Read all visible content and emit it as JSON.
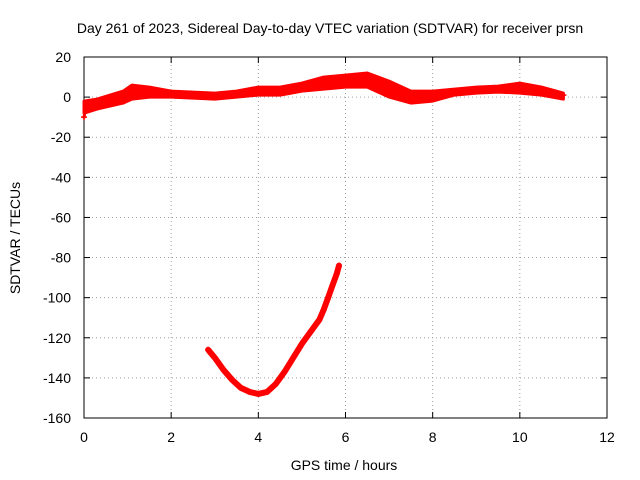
{
  "chart_data": {
    "type": "scatter",
    "title": "Day 261 of 2023, Sidereal Day-to-day VTEC variation (SDTVAR) for receiver prsn",
    "xlabel": "GPS time / hours",
    "ylabel": "SDTVAR / TECUs",
    "xlim": [
      0,
      12
    ],
    "ylim": [
      -160,
      20
    ],
    "xticks": [
      0,
      2,
      4,
      6,
      8,
      10,
      12
    ],
    "yticks": [
      20,
      0,
      -20,
      -40,
      -60,
      -80,
      -100,
      -120,
      -140,
      -160
    ],
    "grid": true,
    "marker": "+",
    "color": "#ff0000",
    "series": [
      {
        "name": "main band",
        "points": [
          [
            0.0,
            -10
          ],
          [
            0.05,
            -4
          ],
          [
            0.2,
            -3
          ],
          [
            0.5,
            -1
          ],
          [
            0.9,
            1
          ],
          [
            1.1,
            3
          ],
          [
            1.5,
            3
          ],
          [
            2.0,
            2
          ],
          [
            2.5,
            1
          ],
          [
            3.0,
            1
          ],
          [
            3.5,
            1.5
          ],
          [
            4.0,
            3.5
          ],
          [
            4.5,
            3.5
          ],
          [
            5.0,
            5
          ],
          [
            5.5,
            8
          ],
          [
            6.0,
            9
          ],
          [
            6.3,
            8
          ],
          [
            6.6,
            9
          ],
          [
            7.0,
            5
          ],
          [
            7.5,
            0
          ],
          [
            8.0,
            0
          ],
          [
            8.5,
            2.5
          ],
          [
            9.0,
            3.5
          ],
          [
            9.5,
            4
          ],
          [
            10.0,
            5
          ],
          [
            10.5,
            3
          ],
          [
            11.0,
            1
          ]
        ],
        "upper": [
          [
            0.0,
            -2
          ],
          [
            0.3,
            -1
          ],
          [
            0.9,
            3
          ],
          [
            1.1,
            6
          ],
          [
            1.5,
            5
          ],
          [
            2.0,
            3
          ],
          [
            3.0,
            2
          ],
          [
            3.5,
            3
          ],
          [
            4.0,
            5
          ],
          [
            4.5,
            5
          ],
          [
            5.0,
            7
          ],
          [
            5.5,
            10
          ],
          [
            6.0,
            11
          ],
          [
            6.5,
            12
          ],
          [
            7.0,
            8
          ],
          [
            7.5,
            3
          ],
          [
            8.0,
            3
          ],
          [
            8.5,
            4
          ],
          [
            9.0,
            5
          ],
          [
            9.5,
            5.5
          ],
          [
            10.0,
            7
          ],
          [
            10.5,
            5
          ],
          [
            11.0,
            2
          ]
        ],
        "lower": [
          [
            0.0,
            -8
          ],
          [
            0.3,
            -6
          ],
          [
            0.9,
            -3
          ],
          [
            1.1,
            -1
          ],
          [
            1.5,
            0
          ],
          [
            2.0,
            0
          ],
          [
            3.0,
            -1
          ],
          [
            3.5,
            0
          ],
          [
            4.0,
            1
          ],
          [
            4.5,
            1
          ],
          [
            5.0,
            3
          ],
          [
            5.5,
            4
          ],
          [
            6.0,
            5
          ],
          [
            6.5,
            5
          ],
          [
            7.0,
            0
          ],
          [
            7.5,
            -3
          ],
          [
            8.0,
            -2
          ],
          [
            8.5,
            1
          ],
          [
            9.0,
            2
          ],
          [
            9.5,
            2.5
          ],
          [
            10.0,
            2
          ],
          [
            10.5,
            1
          ],
          [
            11.0,
            -1
          ]
        ]
      },
      {
        "name": "arc",
        "points": [
          [
            2.85,
            -126
          ],
          [
            3.0,
            -130
          ],
          [
            3.2,
            -136
          ],
          [
            3.4,
            -141
          ],
          [
            3.6,
            -145
          ],
          [
            3.8,
            -147
          ],
          [
            4.0,
            -148
          ],
          [
            4.2,
            -147
          ],
          [
            4.4,
            -143
          ],
          [
            4.6,
            -137
          ],
          [
            4.8,
            -130
          ],
          [
            5.0,
            -123
          ],
          [
            5.2,
            -117
          ],
          [
            5.4,
            -111
          ],
          [
            5.5,
            -106
          ],
          [
            5.6,
            -100
          ],
          [
            5.7,
            -94
          ],
          [
            5.8,
            -88
          ],
          [
            5.85,
            -84
          ]
        ]
      }
    ]
  }
}
